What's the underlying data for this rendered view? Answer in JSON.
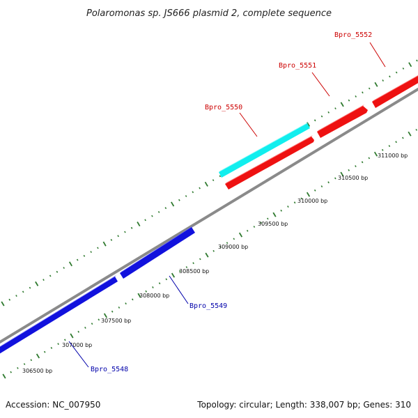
{
  "title": "Polaromonas sp. JS666 plasmid 2, complete sequence",
  "accession_text": "Accession: NC_007950",
  "summary_text": "Topology: circular; Length: 338,007 bp; Genes: 310",
  "colors": {
    "backbone": "#8a8a8a",
    "tick": "#2f7a2f",
    "forward_gene": "#ee1111",
    "highlight_gene": "#11eeee",
    "reverse_gene": "#1111dd",
    "forward_label": "#cc0000",
    "reverse_label": "#0000aa"
  },
  "ticks": [
    {
      "label": "306500 bp"
    },
    {
      "label": "307000 bp"
    },
    {
      "label": "307500 bp"
    },
    {
      "label": "308000 bp"
    },
    {
      "label": "308500 bp"
    },
    {
      "label": "309000 bp"
    },
    {
      "label": "309500 bp"
    },
    {
      "label": "310000 bp"
    },
    {
      "label": "310500 bp"
    },
    {
      "label": "311000 bp"
    }
  ],
  "genes": [
    {
      "name": "Bpro_5548",
      "strand": "reverse"
    },
    {
      "name": "Bpro_5549",
      "strand": "reverse"
    },
    {
      "name": "Bpro_5550",
      "strand": "forward",
      "highlight": true
    },
    {
      "name": "Bpro_5551",
      "strand": "forward"
    },
    {
      "name": "Bpro_5552",
      "strand": "forward"
    }
  ]
}
